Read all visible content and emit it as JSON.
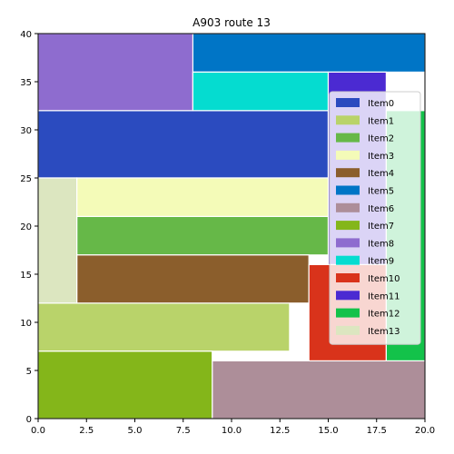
{
  "chart_data": {
    "type": "treemap",
    "title": "A903 route 13",
    "xlim": [
      0,
      20
    ],
    "ylim": [
      0,
      40
    ],
    "xticks": [
      "0.0",
      "2.5",
      "5.0",
      "7.5",
      "10.0",
      "12.5",
      "15.0",
      "17.5",
      "20.0"
    ],
    "yticks": [
      "0",
      "5",
      "10",
      "15",
      "20",
      "25",
      "30",
      "35",
      "40"
    ],
    "legend_position": "right",
    "items": [
      {
        "name": "Item0",
        "color": "#2b4bbf",
        "x0": 0,
        "x1": 15,
        "y0": 25,
        "y1": 32
      },
      {
        "name": "Item1",
        "color": "#b9d36a",
        "x0": 0,
        "x1": 13,
        "y0": 7,
        "y1": 12
      },
      {
        "name": "Item2",
        "color": "#66b848",
        "x0": 2,
        "x1": 15,
        "y0": 17,
        "y1": 21
      },
      {
        "name": "Item3",
        "color": "#f4fbb8",
        "x0": 2,
        "x1": 15,
        "y0": 21,
        "y1": 25
      },
      {
        "name": "Item4",
        "color": "#8b5e2c",
        "x0": 2,
        "x1": 14,
        "y0": 12,
        "y1": 17
      },
      {
        "name": "Item5",
        "color": "#0075c6",
        "x0": 8,
        "x1": 20,
        "y0": 36,
        "y1": 40
      },
      {
        "name": "Item6",
        "color": "#ad8e99",
        "x0": 9,
        "x1": 20,
        "y0": 0,
        "y1": 6
      },
      {
        "name": "Item7",
        "color": "#84b61a",
        "x0": 0,
        "x1": 9,
        "y0": 0,
        "y1": 7
      },
      {
        "name": "Item8",
        "color": "#8e6ccf",
        "x0": 0,
        "x1": 8,
        "y0": 32,
        "y1": 40
      },
      {
        "name": "Item9",
        "color": "#05dcd0",
        "x0": 8,
        "x1": 15,
        "y0": 32,
        "y1": 36
      },
      {
        "name": "Item10",
        "color": "#d9331b",
        "x0": 14,
        "x1": 18,
        "y0": 6,
        "y1": 16
      },
      {
        "name": "Item11",
        "color": "#4b2ad2",
        "x0": 15,
        "x1": 18,
        "y0": 16,
        "y1": 36
      },
      {
        "name": "Item12",
        "color": "#13c24a",
        "x0": 18,
        "x1": 20,
        "y0": 6,
        "y1": 32
      },
      {
        "name": "Item13",
        "color": "#dce6c0",
        "x0": 0,
        "x1": 2,
        "y0": 12,
        "y1": 25
      }
    ]
  }
}
